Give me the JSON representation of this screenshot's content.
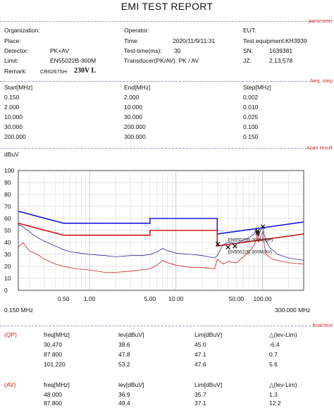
{
  "title": "EMI TEST REPORT",
  "section_labels": {
    "parameter": "parameter",
    "freq_step": "freq. step",
    "scan_result": "scan result",
    "final_test": "final test"
  },
  "info": {
    "organization_label": "Organization:",
    "place_label": "Place:",
    "detector_label": "Detector:",
    "detector_value": "PK+AV",
    "limit_label": "Limit:",
    "limit_value": "EN55022B-300M",
    "remark_label": "Remark:",
    "remark_value": "CR6267SH",
    "remark_hand": "230V L",
    "operator_label": "Operator:",
    "time_label": "Time:",
    "time_value": "2020/11/9/11:31",
    "testtime_label": "Test-time(ms):",
    "testtime_value": "30",
    "transducer_label": "Transducer(PK/AV): PK  /  AV",
    "eut_label": "EUT:",
    "equip_label": "Test equipment:KH3939",
    "sn_label": "SN:",
    "sn_value": "1639381",
    "jz_label": "JZ:",
    "jz_value": "2,13,578"
  },
  "freq_table": {
    "headers": [
      "Start[MHz]",
      "End[MHz]",
      "Step[MHz]"
    ],
    "rows": [
      [
        "0.150",
        "2.000",
        "0.002"
      ],
      [
        "2.000",
        "10.000",
        "0.010"
      ],
      [
        "10.000",
        "30.000",
        "0.025"
      ],
      [
        "30.000",
        "200.000",
        "0.100"
      ],
      [
        "200.000",
        "300.000",
        "0.150"
      ]
    ]
  },
  "chart_data": {
    "type": "line",
    "ylabel": "dBuV",
    "ylim": [
      0,
      100
    ],
    "y_ticks": [
      "100",
      "90",
      "80",
      "70",
      "60",
      "50",
      "40",
      "30",
      "20",
      "10",
      "0"
    ],
    "x_scale": "log",
    "xlim": [
      0.15,
      300
    ],
    "x_ticks": [
      "0.50",
      "1.00",
      "5.00",
      "10.00",
      "50.00",
      "100.00"
    ],
    "x_start_label": "0.150 MHz",
    "x_end_label": "300.000 MHz",
    "grid": true,
    "limit_labels": [
      "EN55022B-300M(QP)",
      "EN55022B-300M(AV)"
    ],
    "colors": {
      "qp_limit": "#1a1adf",
      "av_limit": "#d01818",
      "pk_trace": "#2a2a9a",
      "av_trace": "#c82020",
      "marker": "#000000"
    },
    "series": [
      {
        "name": "EN55022B-300M(QP)",
        "role": "qp_limit",
        "x": [
          0.15,
          0.5,
          0.5,
          5,
          5,
          30,
          30,
          300
        ],
        "y": [
          66,
          56,
          56,
          56,
          60,
          60,
          47,
          57
        ]
      },
      {
        "name": "EN55022B-300M(AV)",
        "role": "av_limit",
        "x": [
          0.15,
          0.5,
          0.5,
          5,
          5,
          30,
          30,
          300
        ],
        "y": [
          56,
          46,
          46,
          46,
          50,
          50,
          37,
          47
        ]
      },
      {
        "role": "pk_trace",
        "x": [
          0.15,
          0.17,
          0.2,
          0.25,
          0.3,
          0.4,
          0.5,
          0.6,
          0.8,
          1,
          1.5,
          2,
          3,
          4,
          5,
          6,
          7,
          8,
          10,
          15,
          20,
          28,
          30,
          35,
          40,
          50,
          60,
          70,
          80,
          85,
          87.8,
          90,
          95,
          101,
          105,
          110,
          120,
          150,
          200,
          300
        ],
        "y": [
          55,
          53,
          49,
          44,
          41,
          37,
          34,
          32,
          31,
          30,
          29,
          28,
          29,
          29,
          30,
          32,
          35,
          33,
          31,
          30,
          29,
          27,
          29,
          38,
          40,
          39,
          42,
          44,
          47,
          52,
          48,
          45,
          50,
          53,
          46,
          42,
          36,
          30,
          27,
          25
        ]
      },
      {
        "role": "av_trace",
        "x": [
          0.15,
          0.17,
          0.2,
          0.25,
          0.3,
          0.4,
          0.5,
          0.7,
          1,
          1.5,
          2,
          3,
          5,
          6,
          7,
          8,
          10,
          15,
          20,
          28,
          30,
          35,
          40,
          50,
          60,
          70,
          80,
          85,
          87.8,
          90,
          95,
          101,
          105,
          110,
          130,
          150,
          200,
          300
        ],
        "y": [
          36,
          40,
          33,
          30,
          26,
          22,
          20,
          18,
          17,
          15,
          15,
          16,
          18,
          21,
          25,
          23,
          21,
          19,
          19,
          18,
          26,
          22,
          24,
          23,
          28,
          32,
          38,
          42,
          48,
          40,
          45,
          49,
          38,
          30,
          26,
          25,
          23,
          22
        ]
      }
    ],
    "markers": [
      {
        "x": 30.47,
        "y": 38.6
      },
      {
        "x": 87.8,
        "y": 47.8
      },
      {
        "x": 101.22,
        "y": 53.2
      },
      {
        "x": 48,
        "y": 36.9
      },
      {
        "x": 87.8,
        "y": 49.4
      },
      {
        "x": 40,
        "y": 36
      }
    ]
  },
  "final_test": {
    "headers": [
      "freq[MHz]",
      "lev[dBuV]",
      "Lim[dBuV]",
      "△(lev-Lim)"
    ],
    "qp_label": "(QP)",
    "qp_rows": [
      [
        "30.470",
        "38.6",
        "45.0",
        "-6.4"
      ],
      [
        "87.800",
        "47.8",
        "47.1",
        "0.7"
      ],
      [
        "101.220",
        "53.2",
        "47.6",
        "5.6"
      ]
    ],
    "av_label": "(AV)",
    "av_rows": [
      [
        "48.000",
        "36.9",
        "35.7",
        "1.3"
      ],
      [
        "87.800",
        "49.4",
        "37.1",
        "12.2"
      ]
    ]
  }
}
